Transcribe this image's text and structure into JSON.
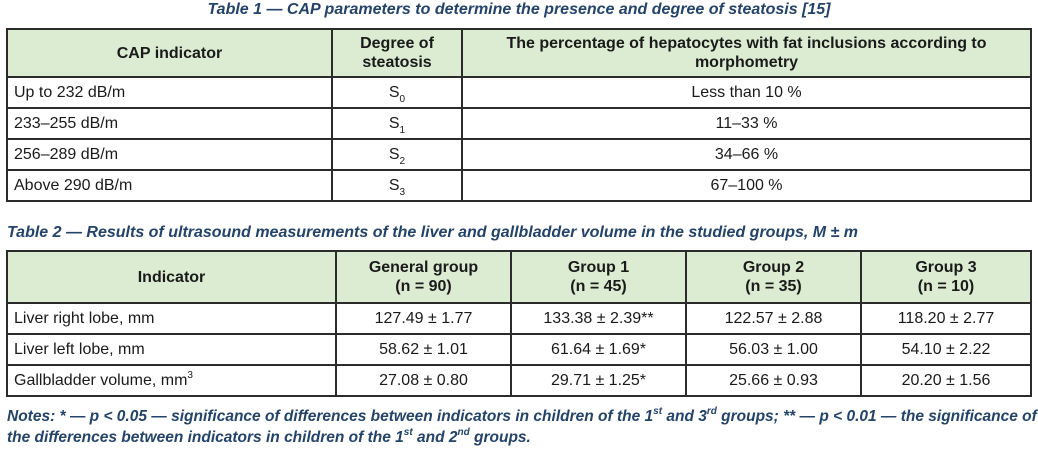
{
  "table1": {
    "caption": "Table 1 — CAP parameters to determine the presence and degree of steatosis [15]",
    "headers": [
      "CAP indicator",
      "Degree of steatosis",
      "The percentage of hepatocytes with fat inclusions according to morphometry"
    ],
    "rows": [
      {
        "cap": "Up to 232 dB/m",
        "degree": "S",
        "degree_sub": "0",
        "percent": "Less than 10 %"
      },
      {
        "cap": "233–255 dB/m",
        "degree": "S",
        "degree_sub": "1",
        "percent": "11–33 %"
      },
      {
        "cap": "256–289 dB/m",
        "degree": "S",
        "degree_sub": "2",
        "percent": "34–66 %"
      },
      {
        "cap": "Above 290 dB/m",
        "degree": "S",
        "degree_sub": "3",
        "percent": "67–100 %"
      }
    ]
  },
  "table2": {
    "caption": "Table 2 — Results of ultrasound measurements of the liver and gallbladder volume in the studied groups, M ± m",
    "headers": [
      {
        "name": "Indicator",
        "n": ""
      },
      {
        "name": "General group",
        "n": "(n = 90)"
      },
      {
        "name": "Group 1",
        "n": "(n = 45)"
      },
      {
        "name": "Group 2",
        "n": "(n = 35)"
      },
      {
        "name": "Group 3",
        "n": "(n = 10)"
      }
    ],
    "rows": [
      {
        "indicator": "Liver right lobe, mm",
        "unit_sup": "",
        "values": [
          "127.49 ± 1.77",
          "133.38 ± 2.39**",
          "122.57 ± 2.88",
          "118.20 ± 2.77"
        ]
      },
      {
        "indicator": "Liver left lobe, mm",
        "unit_sup": "",
        "values": [
          "58.62 ± 1.01",
          "61.64 ± 1.69*",
          "56.03 ± 1.00",
          "54.10 ± 2.22"
        ]
      },
      {
        "indicator": "Gallbladder volume, mm",
        "unit_sup": "3",
        "values": [
          "27.08 ± 0.80",
          "29.71 ± 1.25*",
          "25.66 ± 0.93",
          "20.20 ± 1.56"
        ]
      }
    ]
  },
  "notes": {
    "part1": "Notes: * — p < 0.05 — significance of differences between indicators in children of the 1",
    "sup1": "st",
    "part2": " and 3",
    "sup2": "rd",
    "part3": " groups; ** — p < 0.01 — the significance of the differences between indicators in children of the 1",
    "sup3": "st",
    "part4": " and 2",
    "sup4": "nd",
    "part5": " groups."
  }
}
